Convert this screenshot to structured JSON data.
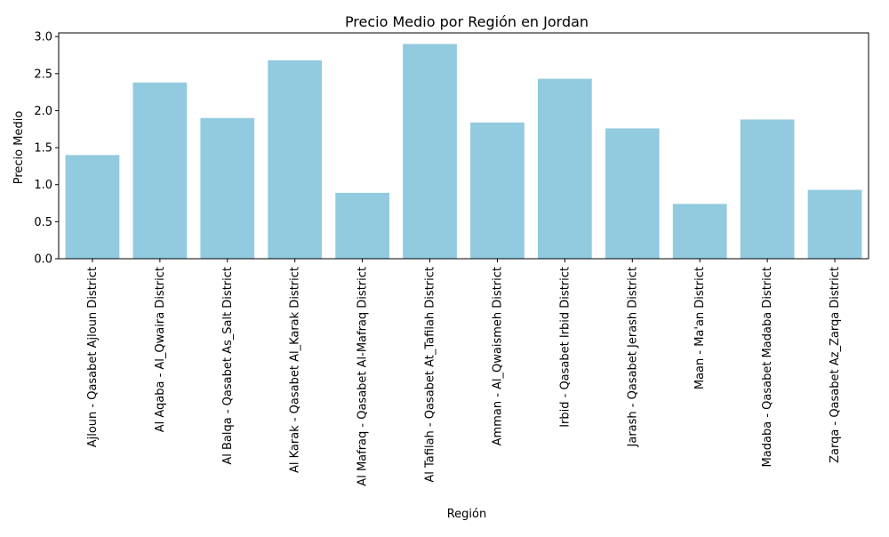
{
  "chart_data": {
    "type": "bar",
    "title": "Precio Medio por Región en Jordan",
    "xlabel": "Región",
    "ylabel": "Precio Medio",
    "categories": [
      "Ajloun - Qasabet Ajloun District",
      "Al  Aqaba - Al_Qwaira District",
      "Al Balqa - Qasabet As_Salt District",
      "Al Karak - Qasabet Al_Karak District",
      "Al Mafraq - Qasabet Al-Mafraq District",
      "Al Tafilah - Qasabet At_Tafilah District",
      "Amman - Al_Qwaismeh District",
      "Irbid - Qasabet Irbid District",
      "Jarash - Qasabet Jerash District",
      "Maan - Ma'an District",
      "Madaba - Qasabet Madaba District",
      "Zarqa - Qasabet Az_Zarqa District"
    ],
    "values": [
      1.4,
      2.38,
      1.9,
      2.68,
      0.89,
      2.9,
      1.84,
      2.43,
      1.76,
      0.74,
      1.88,
      0.93
    ],
    "ylim": [
      0,
      3.05
    ],
    "yticks": [
      "0.0",
      "0.5",
      "1.0",
      "1.5",
      "2.0",
      "2.5",
      "3.0"
    ],
    "bar_color": "#92cadf",
    "grid": false
  }
}
